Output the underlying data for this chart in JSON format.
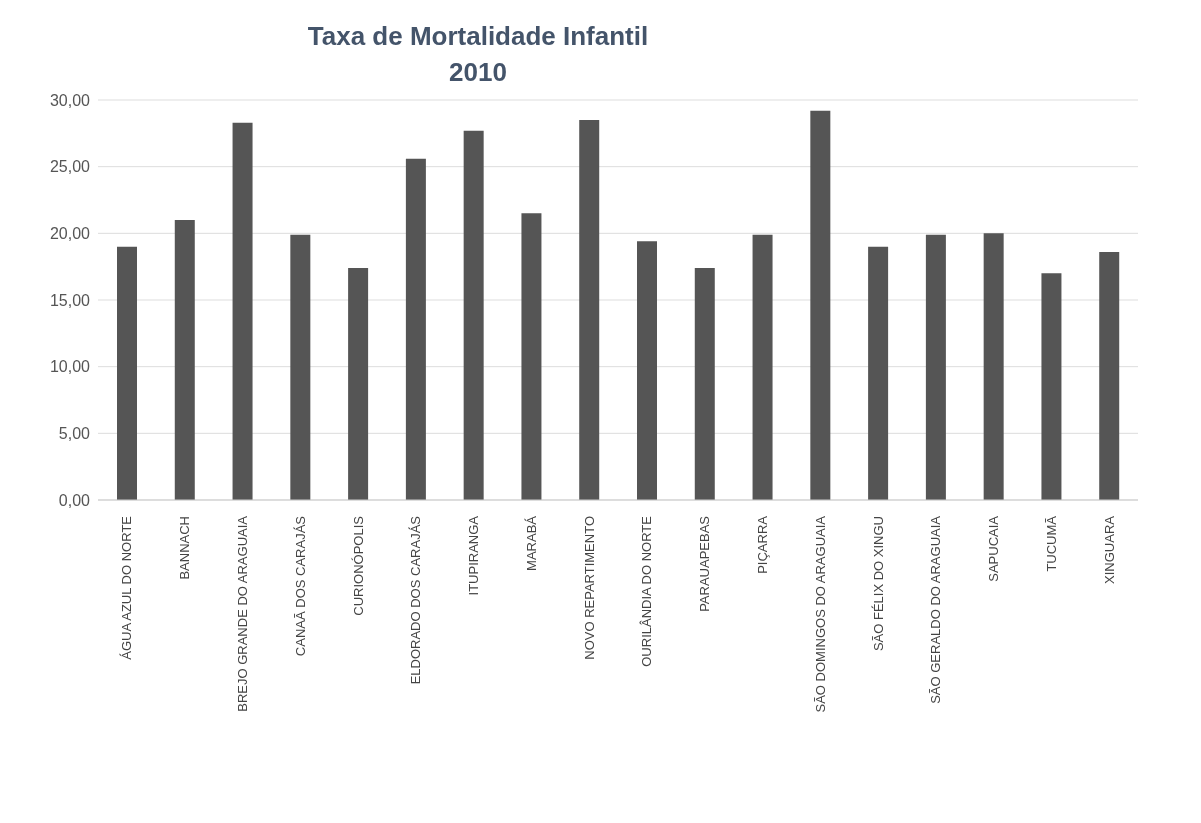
{
  "chart_data": {
    "type": "bar",
    "title": "Taxa de Mortalidade  Infantil\n2010",
    "categories": [
      "ÁGUA AZUL DO NORTE",
      "BANNACH",
      "BREJO GRANDE DO ARAGUAIA",
      "CANAÃ DOS CARAJÁS",
      "CURIONÓPOLIS",
      "ELDORADO DOS CARAJÁS",
      "ITUPIRANGA",
      "MARABÁ",
      "NOVO REPARTIMENTO",
      "OURILÂNDIA DO NORTE",
      "PARAUAPEBAS",
      "PIÇARRA",
      "SÃO DOMINGOS DO ARAGUAIA",
      "SÃO FÉLIX DO XINGU",
      "SÃO GERALDO DO ARAGUAIA",
      "SAPUCAIA",
      "TUCUMÃ",
      "XINGUARA"
    ],
    "values": [
      19.0,
      21.0,
      28.3,
      19.9,
      17.4,
      25.6,
      27.7,
      21.5,
      28.5,
      19.4,
      17.4,
      19.9,
      29.2,
      19.0,
      19.9,
      20.0,
      17.0,
      18.6
    ],
    "color": "#555555",
    "ylim": [
      0,
      30
    ],
    "yticks": [
      {
        "value": 0,
        "label": "0,00"
      },
      {
        "value": 5,
        "label": "5,00"
      },
      {
        "value": 10,
        "label": "10,00"
      },
      {
        "value": 15,
        "label": "15,00"
      },
      {
        "value": 20,
        "label": "20,00"
      },
      {
        "value": 25,
        "label": "25,00"
      },
      {
        "value": 30,
        "label": "30,00"
      }
    ],
    "grid": "y"
  }
}
